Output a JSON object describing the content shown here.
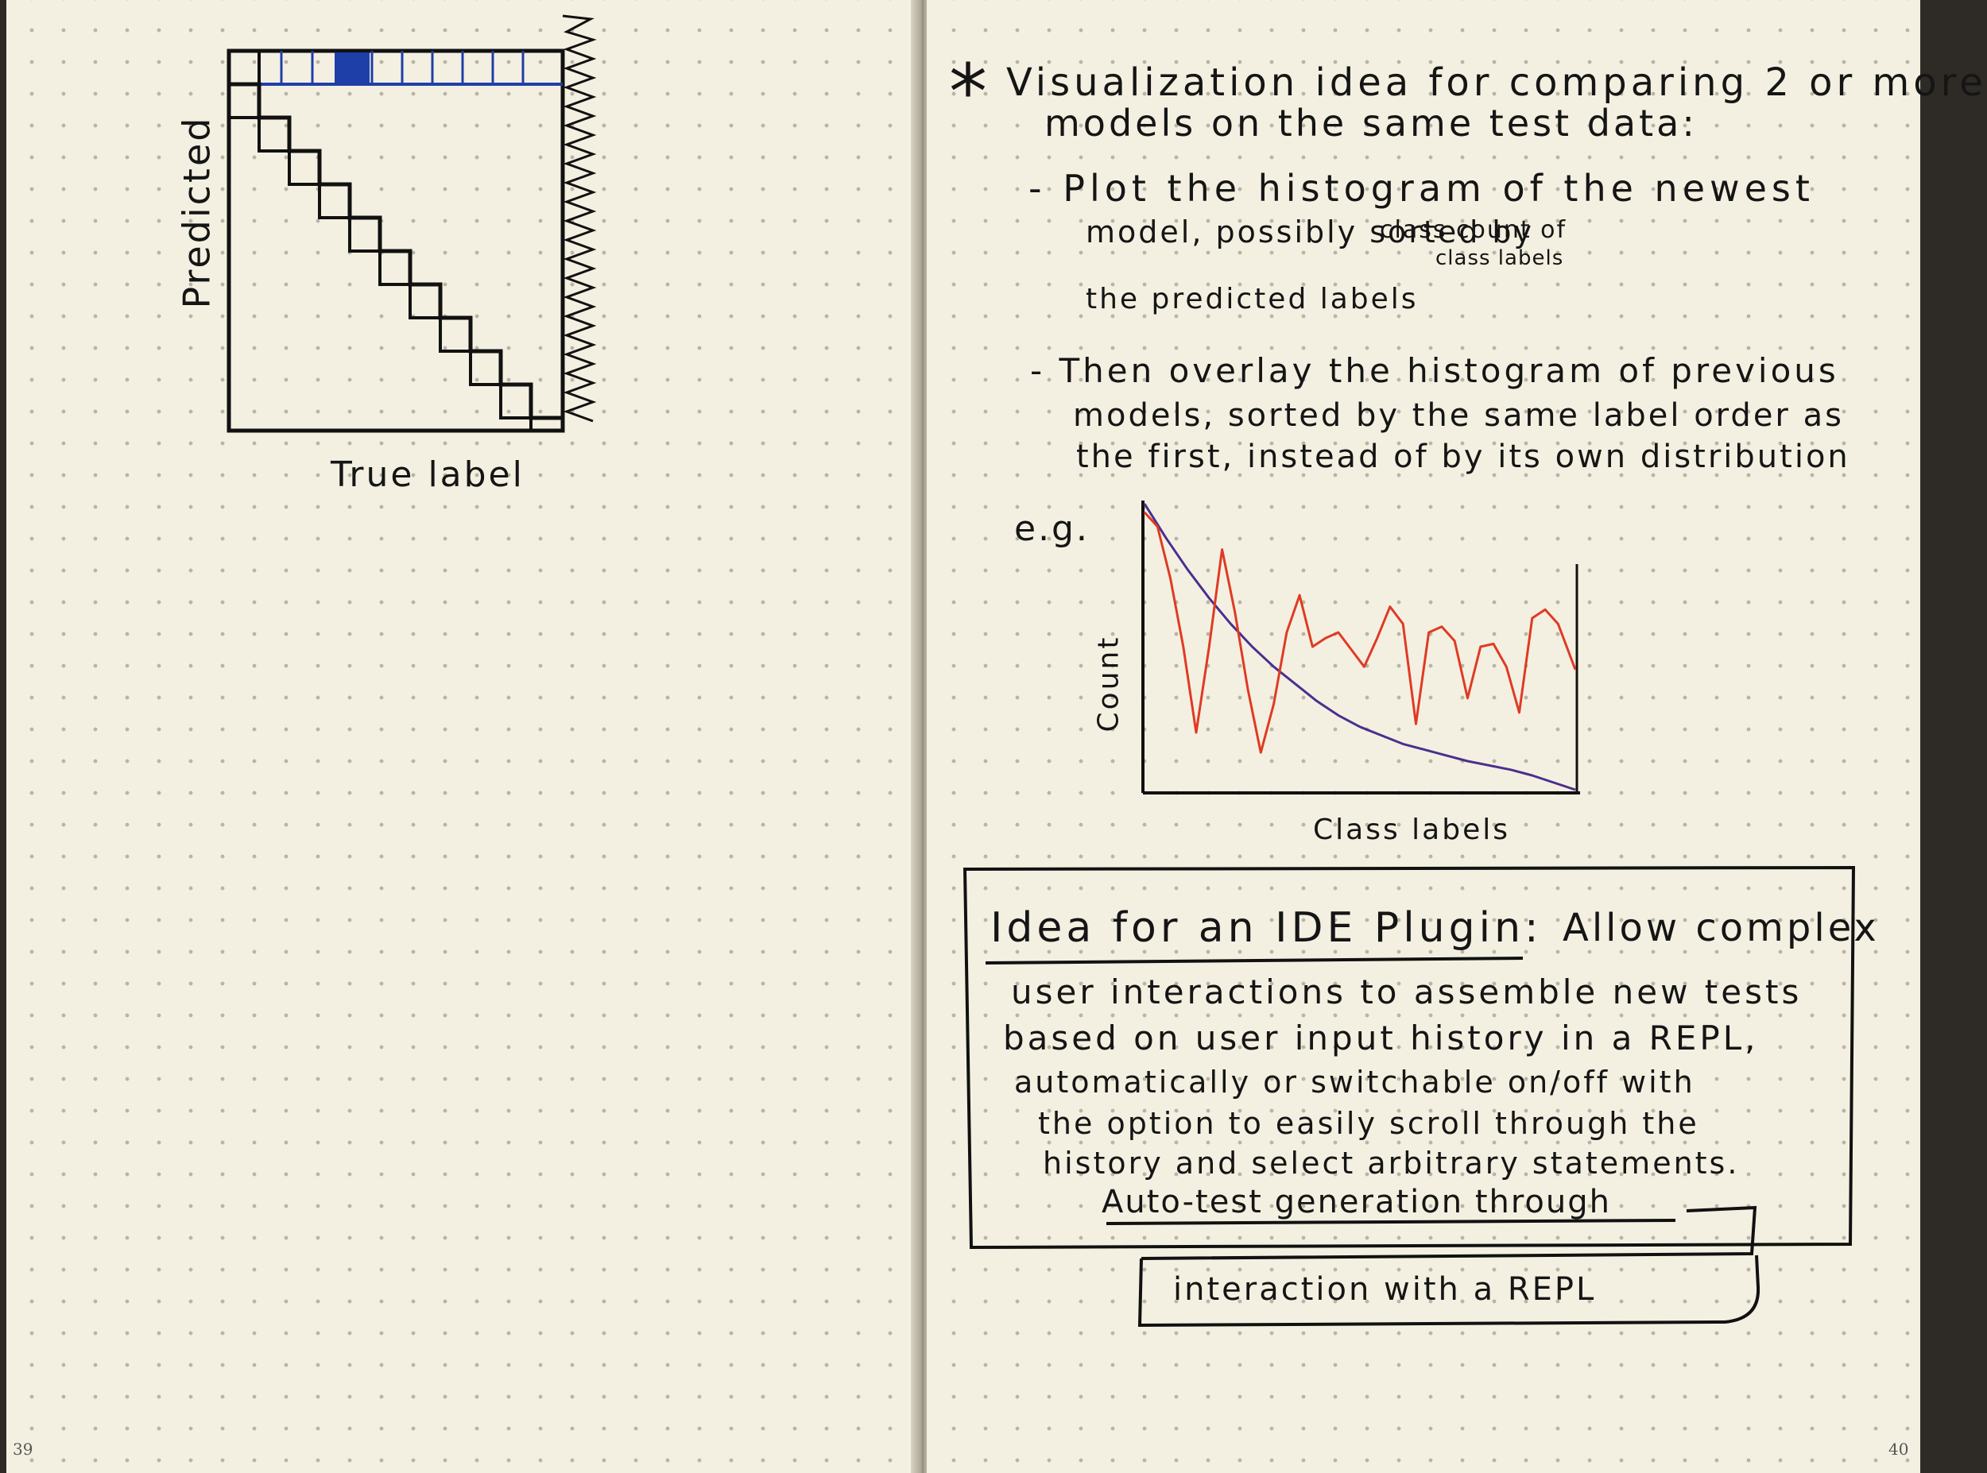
{
  "left_page": {
    "page_number": "39",
    "confusion_sketch": {
      "ylabel": "Predicted",
      "xlabel": "True label"
    }
  },
  "right_page": {
    "page_number": "40",
    "note": {
      "bullet": "*",
      "heading_line1": "Visualization idea for comparing 2 or more",
      "heading_line2": "models on the same test data:",
      "point1_line1": "- Plot the histogram of the newest",
      "point1_line2a": "model, possibly sorted by",
      "point1_sup": "class count of",
      "point1_sub": "class labels",
      "point1_line3": "the predicted labels",
      "point2_line1": "- Then overlay the histogram of previous",
      "point2_line2": "models, sorted by the same label order as",
      "point2_line3": "the first, instead of by its own distribution"
    },
    "chart_data": {
      "type": "line",
      "annotation": "e.g.",
      "ylabel": "Count",
      "xlabel": "Class labels",
      "series": [
        {
          "color": "#4b2f8f",
          "x": [
            0,
            0.05,
            0.1,
            0.15,
            0.2,
            0.25,
            0.3,
            0.35,
            0.4,
            0.45,
            0.5,
            0.55,
            0.6,
            0.65,
            0.7,
            0.75,
            0.8,
            0.85,
            0.9,
            0.95,
            1.0
          ],
          "values": [
            1.0,
            0.88,
            0.77,
            0.67,
            0.58,
            0.5,
            0.43,
            0.37,
            0.31,
            0.26,
            0.22,
            0.19,
            0.16,
            0.14,
            0.12,
            0.1,
            0.085,
            0.07,
            0.05,
            0.025,
            0.0
          ]
        },
        {
          "color": "#e03a24",
          "x": [
            0,
            0.03,
            0.06,
            0.09,
            0.12,
            0.15,
            0.18,
            0.21,
            0.24,
            0.27,
            0.3,
            0.33,
            0.36,
            0.39,
            0.42,
            0.45,
            0.48,
            0.51,
            0.54,
            0.57,
            0.6,
            0.63,
            0.66,
            0.69,
            0.72,
            0.75,
            0.78,
            0.81,
            0.84,
            0.87,
            0.9,
            0.93,
            0.96,
            0.98,
            1.0
          ],
          "values": [
            0.97,
            0.92,
            0.74,
            0.5,
            0.2,
            0.5,
            0.84,
            0.62,
            0.35,
            0.13,
            0.3,
            0.55,
            0.68,
            0.5,
            0.53,
            0.55,
            0.49,
            0.43,
            0.53,
            0.64,
            0.58,
            0.23,
            0.55,
            0.57,
            0.52,
            0.32,
            0.5,
            0.51,
            0.43,
            0.27,
            0.6,
            0.63,
            0.58,
            0.5,
            0.42
          ]
        }
      ],
      "xlim": [
        0,
        1
      ],
      "ylim": [
        0,
        1
      ],
      "grid": false,
      "legend": "none"
    },
    "idea_box": {
      "title": "Idea for an IDE Plugin:",
      "title_rest": "Allow complex",
      "line1": "user interactions to assemble new tests",
      "line2": "based on user input history in a REPL,",
      "line3": "automatically or switchable on/off with",
      "line4": "the option to easily scroll through the",
      "line5": "history and select arbitrary statements.",
      "sub_line1": "Auto-test generation through",
      "sub_line2": "interaction with a REPL"
    }
  }
}
